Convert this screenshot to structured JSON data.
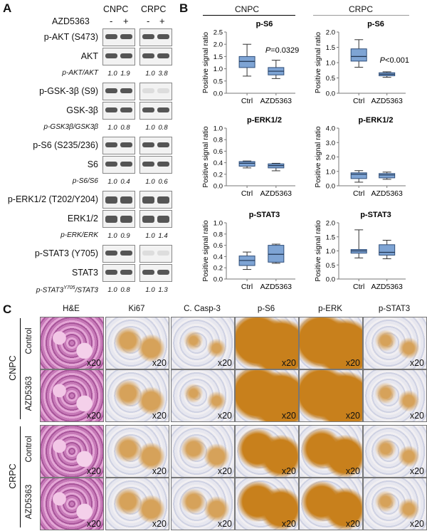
{
  "panel_a": {
    "label": "A",
    "header": {
      "cnpc": "CNPC",
      "crpc": "CRPC",
      "treatment": "AZD5363",
      "minus": "-",
      "plus": "+"
    },
    "rows": [
      {
        "name": "p-AKT (S473)"
      },
      {
        "name": "AKT"
      },
      {
        "ratio": "p-AKT/AKT",
        "vals": [
          "1.0",
          "1.9",
          "1.0",
          "3.8"
        ]
      },
      {
        "name": "p-GSK-3β (S9)"
      },
      {
        "name": "GSK-3β"
      },
      {
        "ratio": "p-GSK3β/GSK3β",
        "vals": [
          "1.0",
          "0.8",
          "1.0",
          "0.8"
        ]
      },
      {
        "name": "p-S6 (S235/236)"
      },
      {
        "name": "S6"
      },
      {
        "ratio": "p-S6/S6",
        "vals": [
          "1.0",
          "0.4",
          "1.0",
          "0.6"
        ]
      },
      {
        "name": "p-ERK1/2 (T202/Y204)"
      },
      {
        "name": "ERK1/2"
      },
      {
        "ratio": "p-ERK/ERK",
        "vals": [
          "1.0",
          "0.9",
          "1.0",
          "1.4"
        ]
      },
      {
        "name": "p-STAT3 (Y705)"
      },
      {
        "name": "STAT3"
      },
      {
        "ratio": "p-STAT3/STAT3",
        "ratio_sup": "Y705",
        "vals": [
          "1.0",
          "0.8",
          "1.0",
          "1.3"
        ]
      }
    ]
  },
  "panel_b": {
    "label": "B",
    "cnpc_header": "CNPC",
    "crpc_header": "CRPC"
  },
  "chart_data": [
    {
      "type": "box",
      "group": "CNPC",
      "title": "p-S6",
      "ylabel": "Positive signal ratio",
      "ylim": [
        0,
        2.5
      ],
      "yticks": [
        "0.0",
        "0.5",
        "1.0",
        "1.5",
        "2.0",
        "2.5"
      ],
      "categories": [
        "Ctrl",
        "AZD5363"
      ],
      "boxes": [
        {
          "min": 0.7,
          "q1": 1.05,
          "median": 1.3,
          "q3": 1.5,
          "max": 2.0
        },
        {
          "min": 0.6,
          "q1": 0.75,
          "median": 0.9,
          "q3": 1.05,
          "max": 1.35
        }
      ],
      "annotation": {
        "prefix": "P",
        "text": "=0.0329"
      }
    },
    {
      "type": "box",
      "group": "CRPC",
      "title": "p-S6",
      "ylabel": "Positive signal ratio",
      "ylim": [
        0,
        2.0
      ],
      "yticks": [
        "0.0",
        "0.5",
        "1.0",
        "1.5",
        "2.0"
      ],
      "categories": [
        "Ctrl",
        "AZD5363"
      ],
      "boxes": [
        {
          "min": 0.85,
          "q1": 1.05,
          "median": 1.2,
          "q3": 1.45,
          "max": 1.75
        },
        {
          "min": 0.52,
          "q1": 0.57,
          "median": 0.62,
          "q3": 0.67,
          "max": 0.7
        }
      ],
      "annotation": {
        "prefix": "P",
        "text": "<0.001"
      }
    },
    {
      "type": "box",
      "group": "CNPC",
      "title": "p-ERK1/2",
      "ylabel": "Positive signal ratio",
      "ylim": [
        0,
        1.0
      ],
      "yticks": [
        "0.0",
        "0.2",
        "0.4",
        "0.6",
        "0.8",
        "1.0"
      ],
      "categories": [
        "Ctrl",
        "AZD5363"
      ],
      "boxes": [
        {
          "min": 0.31,
          "q1": 0.34,
          "median": 0.39,
          "q3": 0.42,
          "max": 0.43
        },
        {
          "min": 0.26,
          "q1": 0.31,
          "median": 0.35,
          "q3": 0.38,
          "max": 0.39
        }
      ]
    },
    {
      "type": "box",
      "group": "CRPC",
      "title": "p-ERK1/2",
      "ylabel": "Positive signal ratio",
      "ylim": [
        0,
        4.0
      ],
      "yticks": [
        "0.0",
        "1.0",
        "2.0",
        "3.0",
        "4.0"
      ],
      "categories": [
        "Ctrl",
        "AZD5363"
      ],
      "boxes": [
        {
          "min": 0.25,
          "q1": 0.5,
          "median": 0.8,
          "q3": 0.9,
          "max": 1.05
        },
        {
          "min": 0.45,
          "q1": 0.55,
          "median": 0.75,
          "q3": 0.85,
          "max": 0.95
        }
      ]
    },
    {
      "type": "box",
      "group": "CNPC",
      "title": "p-STAT3",
      "ylabel": "Positive signal ratio",
      "ylim": [
        0,
        1.0
      ],
      "yticks": [
        "0.0",
        "0.2",
        "0.4",
        "0.6",
        "0.8",
        "1.0"
      ],
      "categories": [
        "Ctrl",
        "AZD5363"
      ],
      "boxes": [
        {
          "min": 0.17,
          "q1": 0.24,
          "median": 0.33,
          "q3": 0.41,
          "max": 0.48
        },
        {
          "min": 0.28,
          "q1": 0.3,
          "median": 0.44,
          "q3": 0.6,
          "max": 0.62
        }
      ]
    },
    {
      "type": "box",
      "group": "CRPC",
      "title": "p-STAT3",
      "ylabel": "Positive signal ratio",
      "ylim": [
        0,
        2.0
      ],
      "yticks": [
        "0.0",
        "0.5",
        "1.0",
        "1.5",
        "2.0"
      ],
      "categories": [
        "Ctrl",
        "AZD5363"
      ],
      "boxes": [
        {
          "min": 0.75,
          "q1": 0.92,
          "median": 1.0,
          "q3": 1.05,
          "max": 1.75
        },
        {
          "min": 0.72,
          "q1": 0.85,
          "median": 0.95,
          "q3": 1.22,
          "max": 1.38
        }
      ]
    }
  ],
  "panel_c": {
    "label": "C",
    "columns": [
      "H&E",
      "Ki67",
      "C. Casp-3",
      "p-S6",
      "p-ERK",
      "p-STAT3"
    ],
    "groups": [
      {
        "name": "CNPC",
        "rows": [
          "Control",
          "AZD5363"
        ]
      },
      {
        "name": "CRPC",
        "rows": [
          "Control",
          "AZD5363"
        ]
      }
    ],
    "magnification": "x20",
    "colors": {
      "he": "#c77ab8",
      "ihc_bg": "#e7e7ef",
      "dab_light": "#d6a25a",
      "dab_strong": "#c8801c"
    }
  }
}
